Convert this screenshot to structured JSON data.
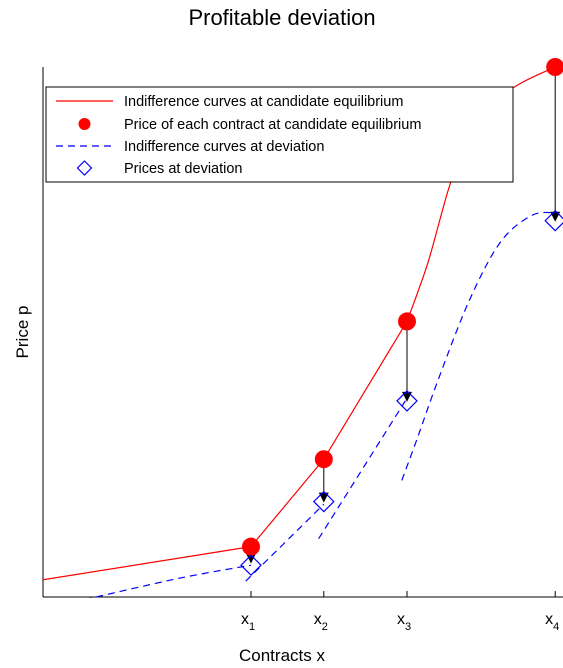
{
  "chart_data": {
    "type": "line",
    "title": "Profitable deviation",
    "xlabel": "Contracts x",
    "ylabel": "Price p",
    "xlim": [
      0,
      1
    ],
    "ylim": [
      0,
      1
    ],
    "grid": false,
    "legend_position": "top-left",
    "ticks": [
      {
        "base": "x",
        "sub": "1",
        "x": 0.4
      },
      {
        "base": "x",
        "sub": "2",
        "x": 0.54
      },
      {
        "base": "x",
        "sub": "3",
        "x": 0.7
      },
      {
        "base": "x",
        "sub": "4",
        "x": 0.985
      }
    ],
    "series": [
      {
        "name": "Indifference curves at candidate equilibrium",
        "kind": "solid-line",
        "color": "#ff0000",
        "segments": [
          [
            [
              -0.08,
              0.02
            ],
            [
              0.4,
              0.095
            ]
          ],
          [
            [
              0.4,
              0.095
            ],
            [
              0.54,
              0.26
            ]
          ],
          [
            [
              0.54,
              0.26
            ],
            [
              0.7,
              0.52
            ]
          ],
          [
            [
              0.7,
              0.52
            ],
            [
              0.74,
              0.63
            ],
            [
              0.78,
              0.77
            ],
            [
              0.82,
              0.88
            ],
            [
              0.86,
              0.93
            ],
            [
              0.92,
              0.97
            ],
            [
              0.985,
              1.0
            ]
          ]
        ]
      },
      {
        "name": "Price of each contract at candidate equilibrium",
        "kind": "filled-circle",
        "color": "#ff0000",
        "points": [
          [
            0.4,
            0.095
          ],
          [
            0.54,
            0.26
          ],
          [
            0.7,
            0.52
          ],
          [
            0.985,
            1.0
          ]
        ]
      },
      {
        "name": "Indifference curves at deviation",
        "kind": "dashed-line",
        "color": "#0000ff",
        "segments": [
          [
            [
              0.08,
              -0.005
            ],
            [
              0.26,
              0.035
            ],
            [
              0.4,
              0.06
            ]
          ],
          [
            [
              0.39,
              0.03
            ],
            [
              0.54,
              0.175
            ]
          ],
          [
            [
              0.53,
              0.11
            ],
            [
              0.7,
              0.375
            ]
          ],
          [
            [
              0.69,
              0.22
            ],
            [
              0.72,
              0.3
            ],
            [
              0.76,
              0.41
            ],
            [
              0.82,
              0.56
            ],
            [
              0.88,
              0.67
            ],
            [
              0.94,
              0.72
            ],
            [
              0.985,
              0.725
            ]
          ]
        ]
      },
      {
        "name": "Prices at deviation",
        "kind": "open-diamond",
        "color": "#0000ff",
        "points": [
          [
            0.4,
            0.06
          ],
          [
            0.54,
            0.18
          ],
          [
            0.7,
            0.37
          ],
          [
            0.985,
            0.71
          ]
        ]
      }
    ],
    "arrows": [
      {
        "x": 0.4,
        "from": 0.095,
        "to": 0.065
      },
      {
        "x": 0.54,
        "from": 0.26,
        "to": 0.18
      },
      {
        "x": 0.7,
        "from": 0.52,
        "to": 0.37
      },
      {
        "x": 0.985,
        "from": 1.0,
        "to": 0.71
      }
    ]
  }
}
